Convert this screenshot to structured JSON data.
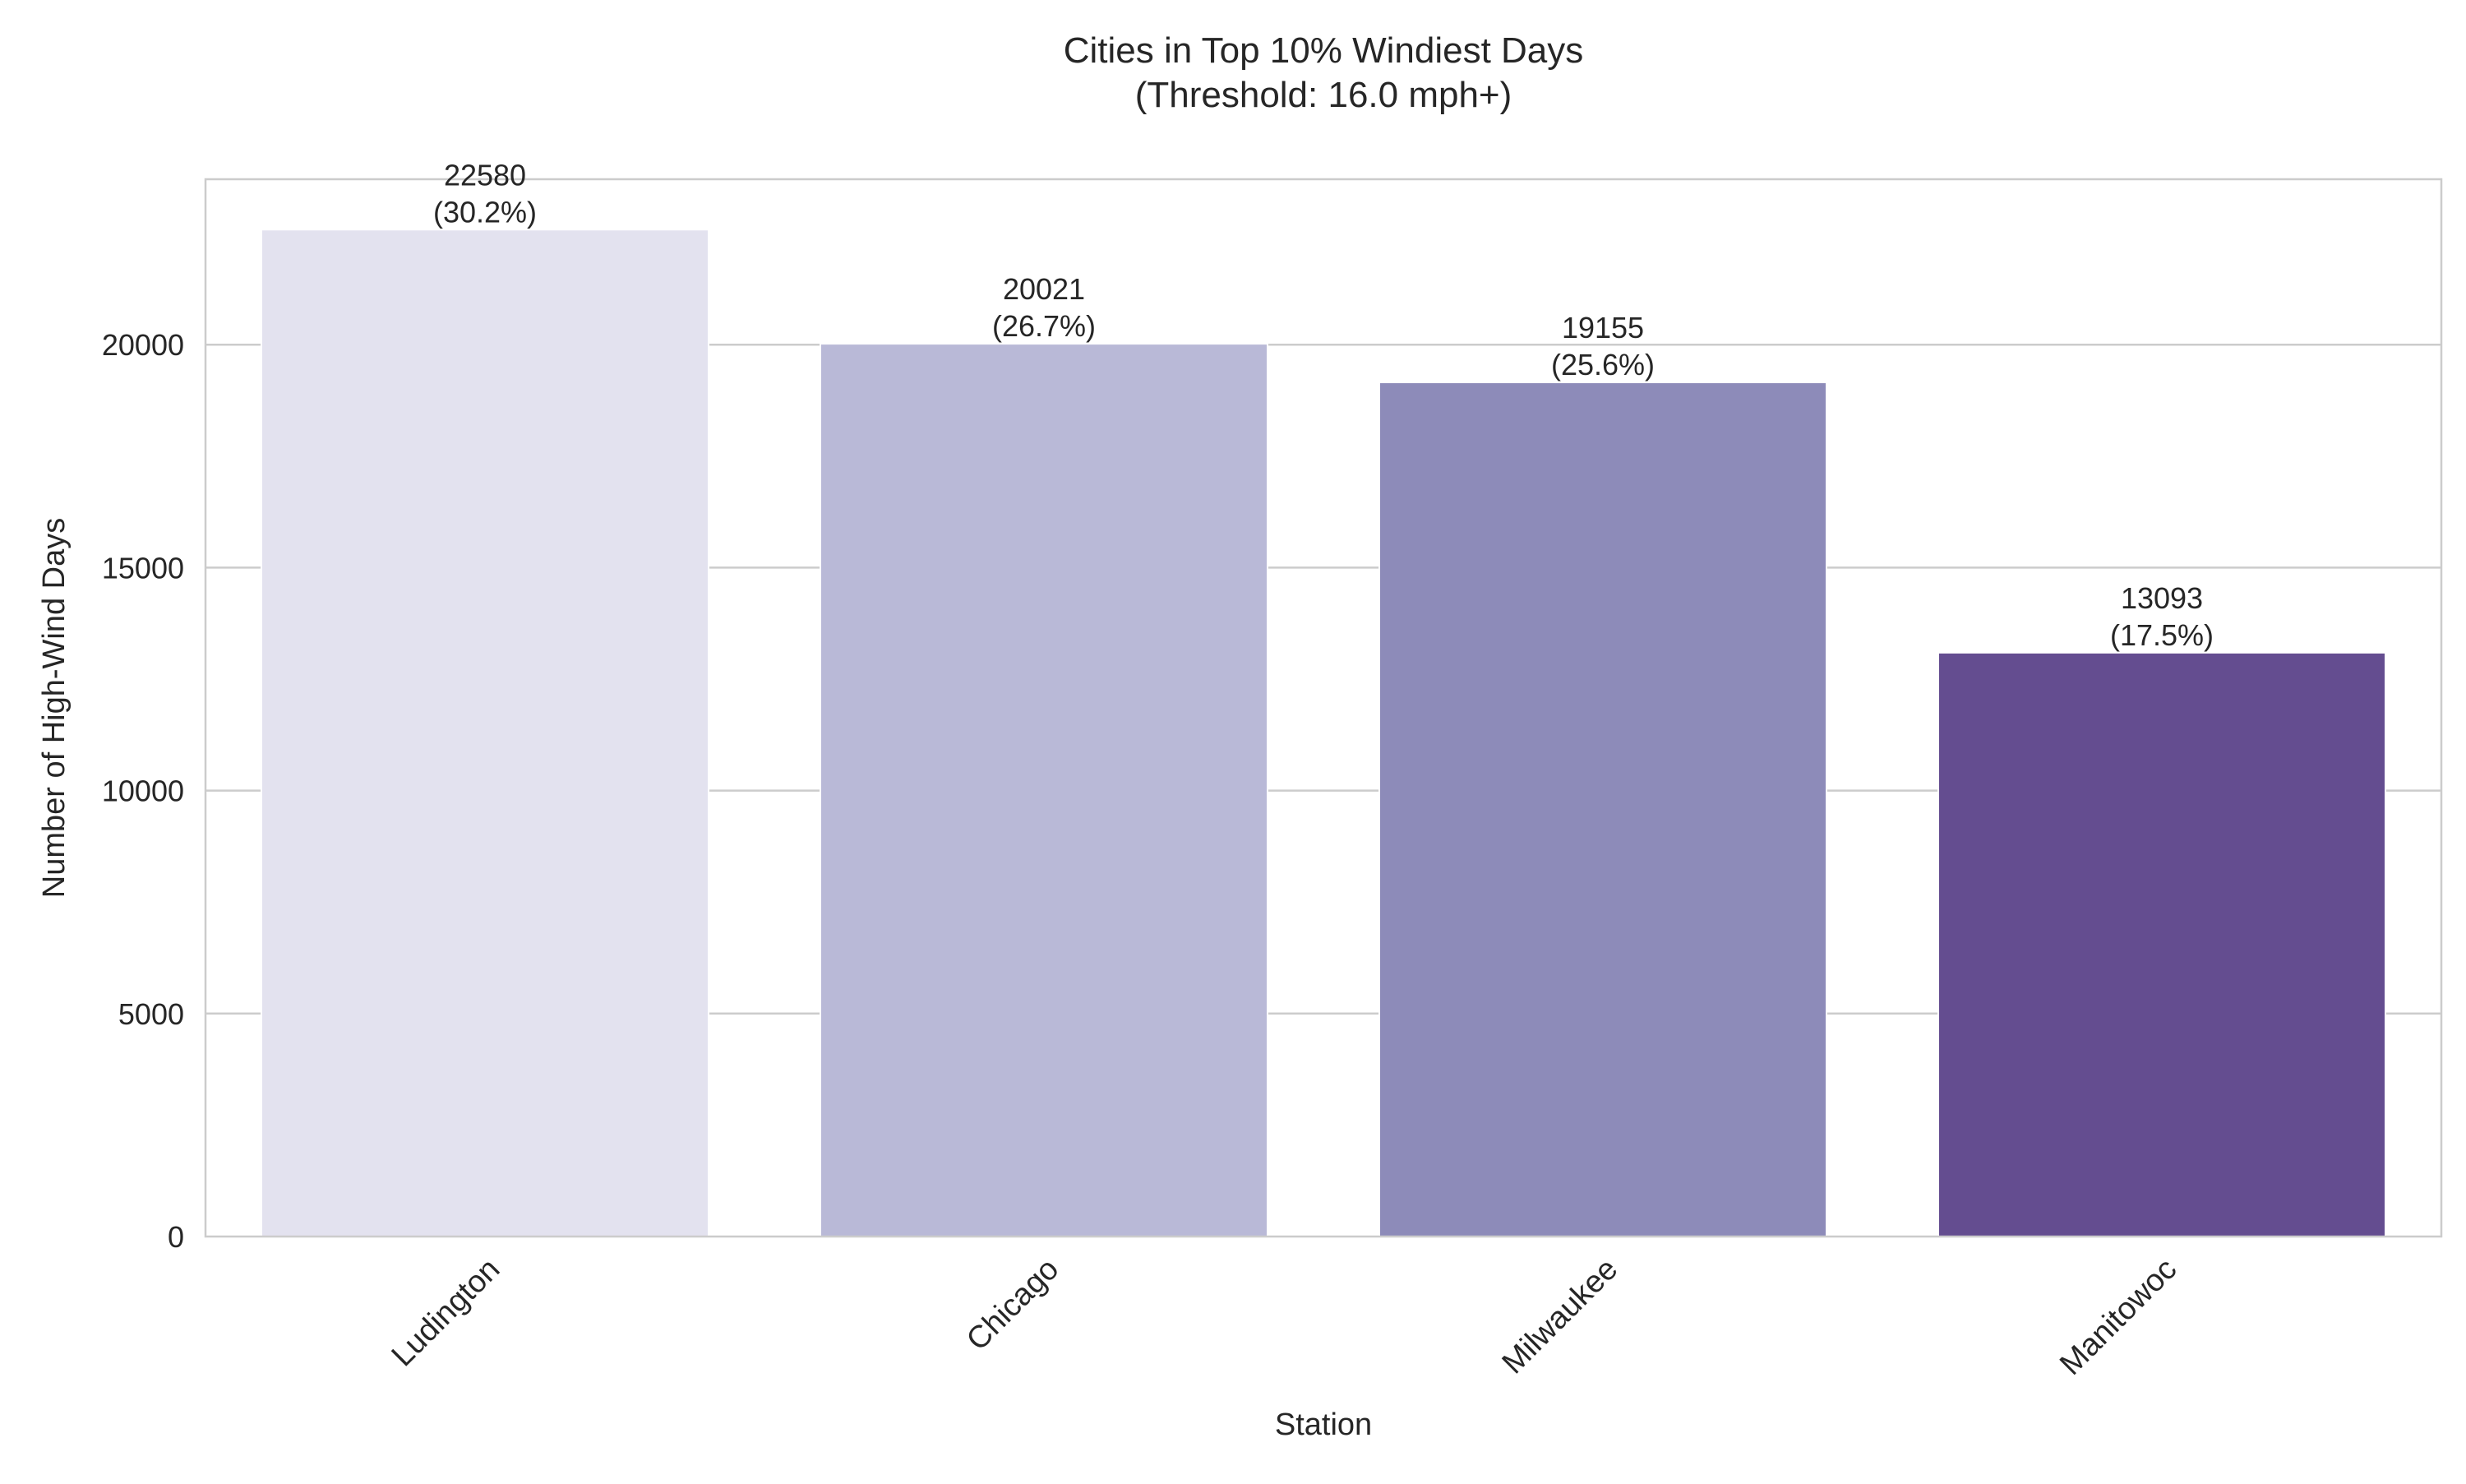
{
  "chart_data": {
    "type": "bar",
    "title": "Cities in Top 10% Windiest Days",
    "subtitle": "(Threshold: 16.0 mph+)",
    "xlabel": "Station",
    "ylabel": "Number of High-Wind Days",
    "categories": [
      "Ludington",
      "Chicago",
      "Milwaukee",
      "Manitowoc"
    ],
    "values": [
      22580,
      20021,
      19155,
      13093
    ],
    "percent_labels": [
      "(30.2%)",
      "(26.7%)",
      "(25.6%)",
      "(17.5%)"
    ],
    "bar_colors": [
      "#e3e2ef",
      "#b9b9d7",
      "#8d8bb9",
      "#644d90"
    ],
    "yticks": [
      0,
      5000,
      10000,
      15000,
      20000
    ],
    "ylim": [
      0,
      23710
    ],
    "grid": true,
    "legend": "none"
  }
}
